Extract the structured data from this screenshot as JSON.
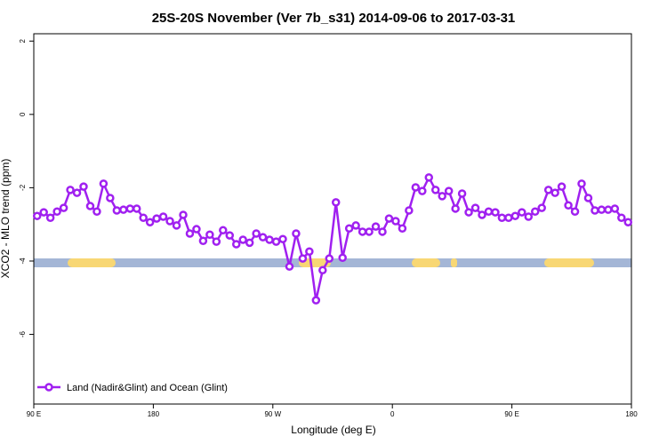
{
  "chart_data": {
    "type": "line",
    "title": "25S-20S November (Ver 7b_s31)   2014-09-06 to 2017-03-31",
    "x_label": "Longitude (deg E)",
    "y_label": "XCO2 - MLO trend (ppm)",
    "xlim": [
      90,
      540
    ],
    "ylim": [
      -7.9,
      2.2
    ],
    "xticks": [
      {
        "value": 90,
        "label": "90 E"
      },
      180,
      {
        "value": 270,
        "label": "90 W"
      },
      {
        "value": 360,
        "label": "0"
      },
      {
        "value": 450,
        "label": "90 E"
      },
      {
        "value": 540,
        "label": "180"
      }
    ],
    "yticks": [
      2,
      0,
      -2,
      -4,
      -6
    ],
    "legend": "bottom-left",
    "x": [
      92.5,
      97.5,
      102.5,
      107.5,
      112.5,
      117.5,
      122.5,
      127.5,
      132.5,
      137.5,
      142.5,
      147.5,
      152.5,
      157.5,
      162.5,
      167.5,
      172.5,
      177.5,
      182.5,
      187.5,
      192.5,
      197.5,
      202.5,
      207.5,
      212.5,
      217.5,
      222.5,
      227.5,
      232.5,
      237.5,
      242.5,
      247.5,
      252.5,
      257.5,
      262.5,
      267.5,
      272.5,
      277.5,
      282.5,
      287.5,
      292.5,
      297.5,
      302.5,
      307.5,
      312.5,
      317.5,
      322.5,
      327.5,
      332.5,
      337.5,
      342.5,
      347.5,
      352.5,
      357.5,
      362.5,
      367.5,
      372.5,
      377.5,
      382.5,
      387.5,
      392.5,
      397.5,
      402.5,
      407.5,
      412.5,
      417.5,
      422.5,
      427.5,
      432.5,
      437.5,
      442.5,
      447.5,
      452.5,
      457.5,
      462.5,
      467.5,
      472.5,
      477.5,
      482.5,
      487.5,
      492.5,
      497.5,
      502.5,
      507.5,
      512.5,
      517.5,
      522.5,
      527.5,
      532.5,
      537.5
    ],
    "series": [
      {
        "name": "Land (Nadir&Glint) and Ocean (Glint)",
        "color": "#a020f0",
        "values": [
          -2.77,
          -2.67,
          -2.82,
          -2.65,
          -2.55,
          -2.06,
          -2.14,
          -1.97,
          -2.5,
          -2.65,
          -1.89,
          -2.28,
          -2.62,
          -2.6,
          -2.57,
          -2.57,
          -2.82,
          -2.94,
          -2.84,
          -2.79,
          -2.91,
          -3.03,
          -2.74,
          -3.25,
          -3.13,
          -3.45,
          -3.28,
          -3.47,
          -3.16,
          -3.3,
          -3.54,
          -3.42,
          -3.5,
          -3.25,
          -3.35,
          -3.42,
          -3.47,
          -3.4,
          -4.15,
          -3.25,
          -3.93,
          -3.74,
          -5.07,
          -4.25,
          -3.93,
          -2.4,
          -3.91,
          -3.11,
          -3.03,
          -3.2,
          -3.2,
          -3.06,
          -3.2,
          -2.84,
          -2.91,
          -3.11,
          -2.62,
          -1.99,
          -2.09,
          -1.72,
          -2.06,
          -2.23,
          -2.09,
          -2.57,
          -2.16,
          -2.67,
          -2.55,
          -2.74,
          -2.65,
          -2.67,
          -2.82,
          -2.82,
          -2.77,
          -2.67,
          -2.79,
          -2.65,
          -2.55,
          -2.06,
          -2.14,
          -1.97,
          -2.48,
          -2.65,
          -1.89,
          -2.28,
          -2.62,
          -2.6,
          -2.6,
          -2.57,
          -2.82,
          -2.94
        ]
      }
    ]
  }
}
